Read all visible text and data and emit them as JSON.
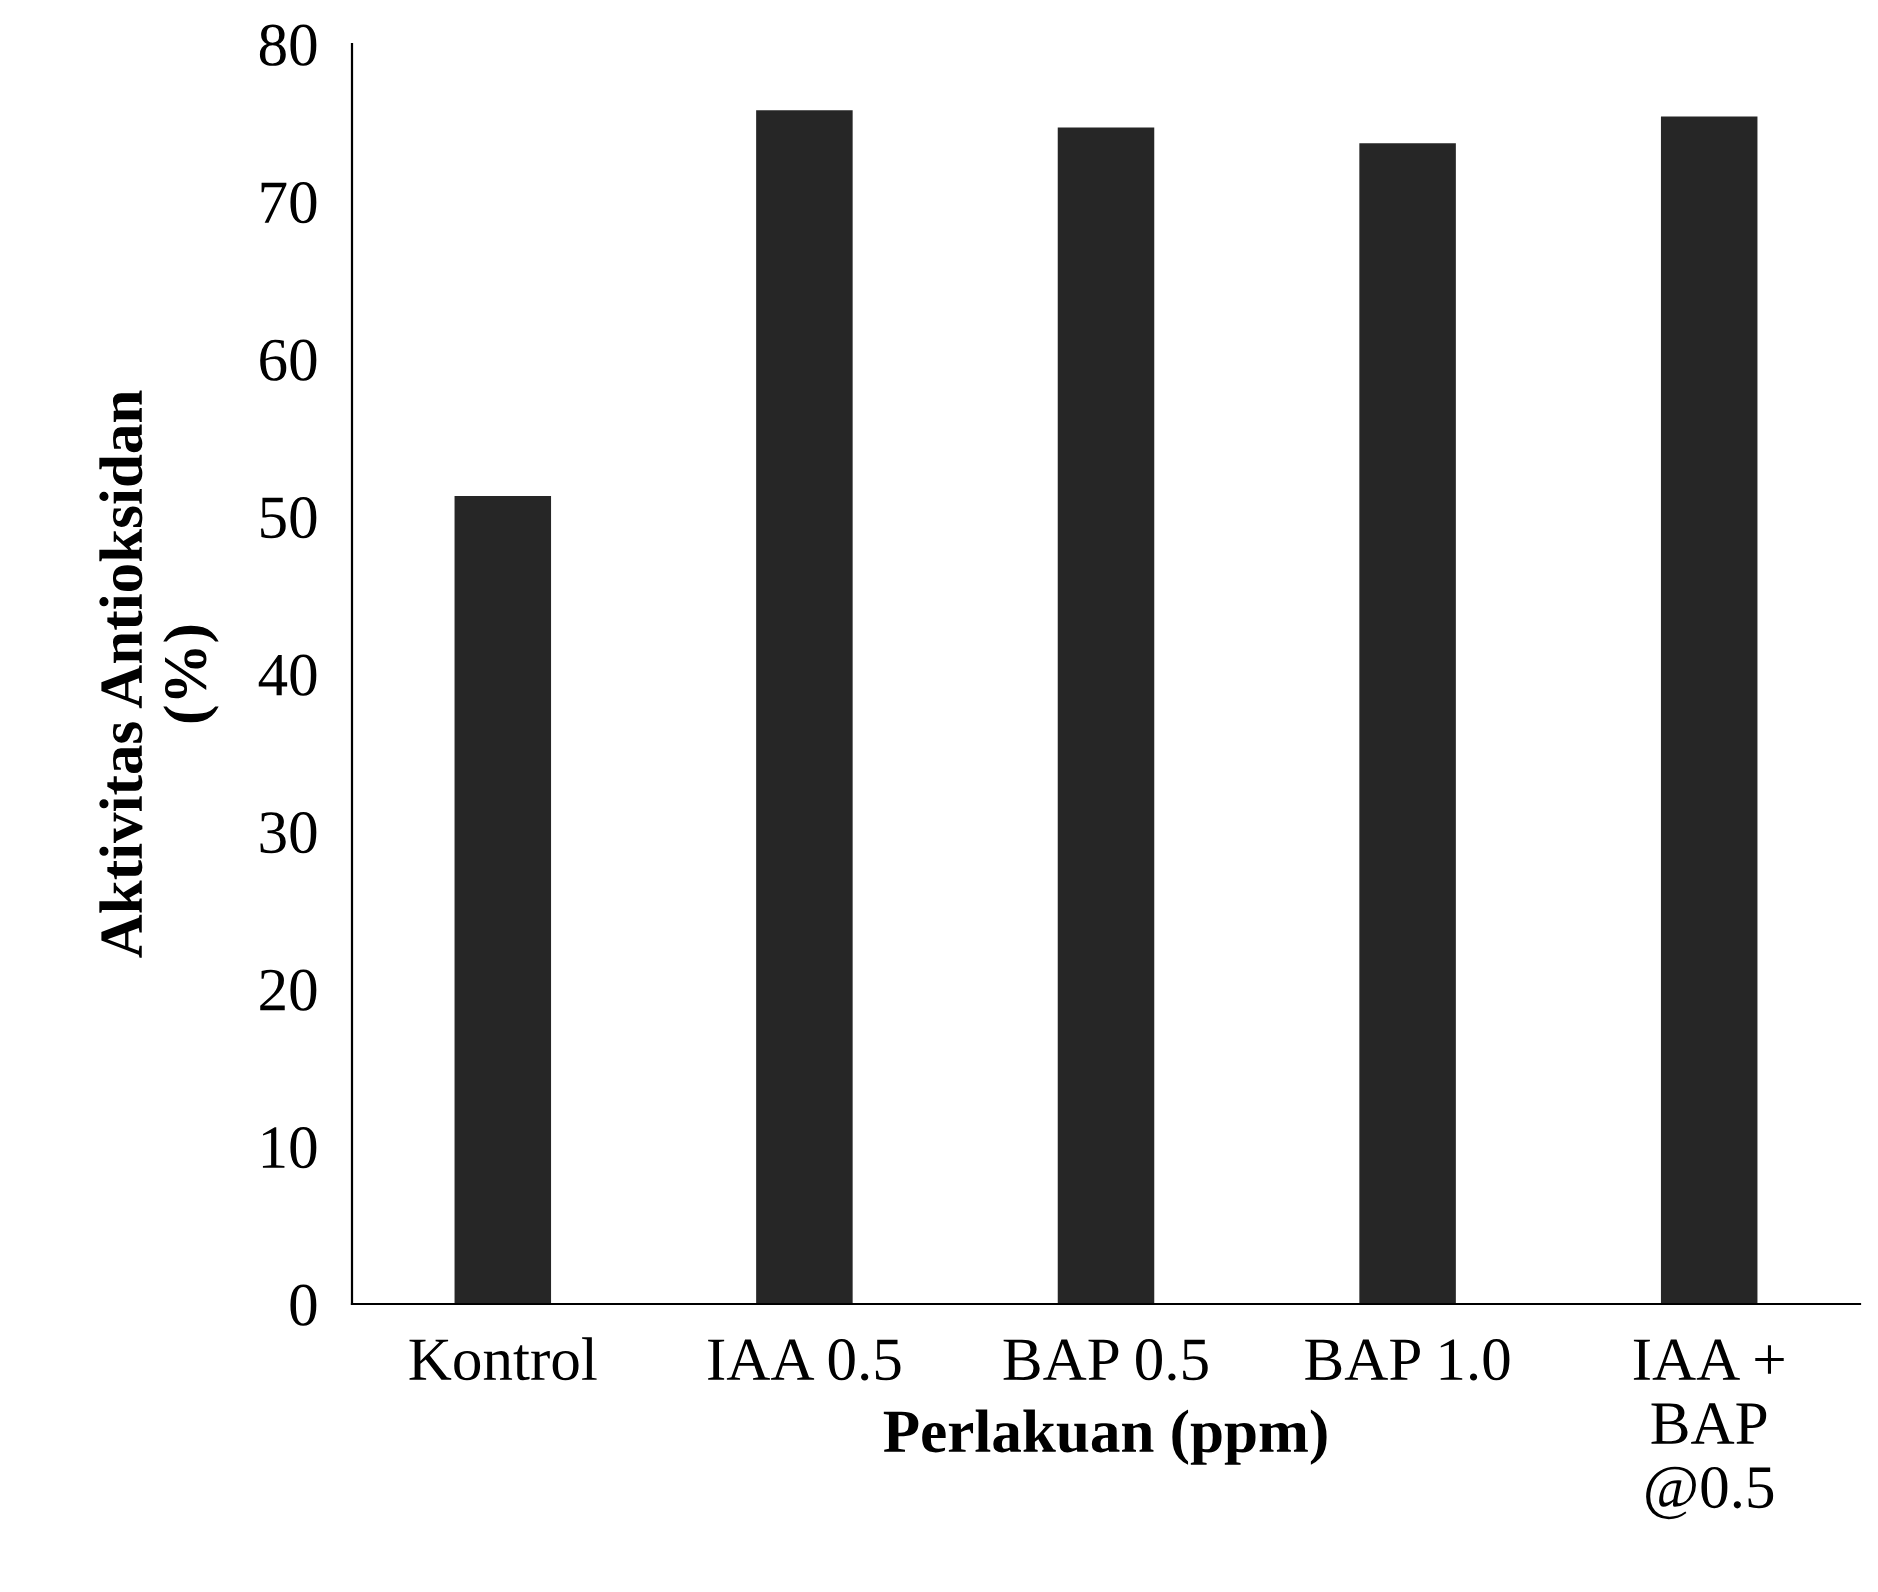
{
  "chart_data": {
    "type": "bar",
    "xlabel": "Perlakuan (ppm)",
    "ylabel": "Aktivitas Antioksidan\n(%)",
    "categories": [
      "Kontrol",
      "IAA 0.5",
      "BAP 0.5",
      "BAP 1.0",
      "IAA +\nBAP\n@0.5"
    ],
    "values": [
      51.3,
      75.8,
      74.7,
      73.7,
      75.4
    ],
    "color": "#262626",
    "ylim": [
      0,
      80
    ],
    "yticks": [
      0,
      10,
      20,
      30,
      40,
      50,
      60,
      70,
      80
    ],
    "grid": false,
    "legend": false
  }
}
